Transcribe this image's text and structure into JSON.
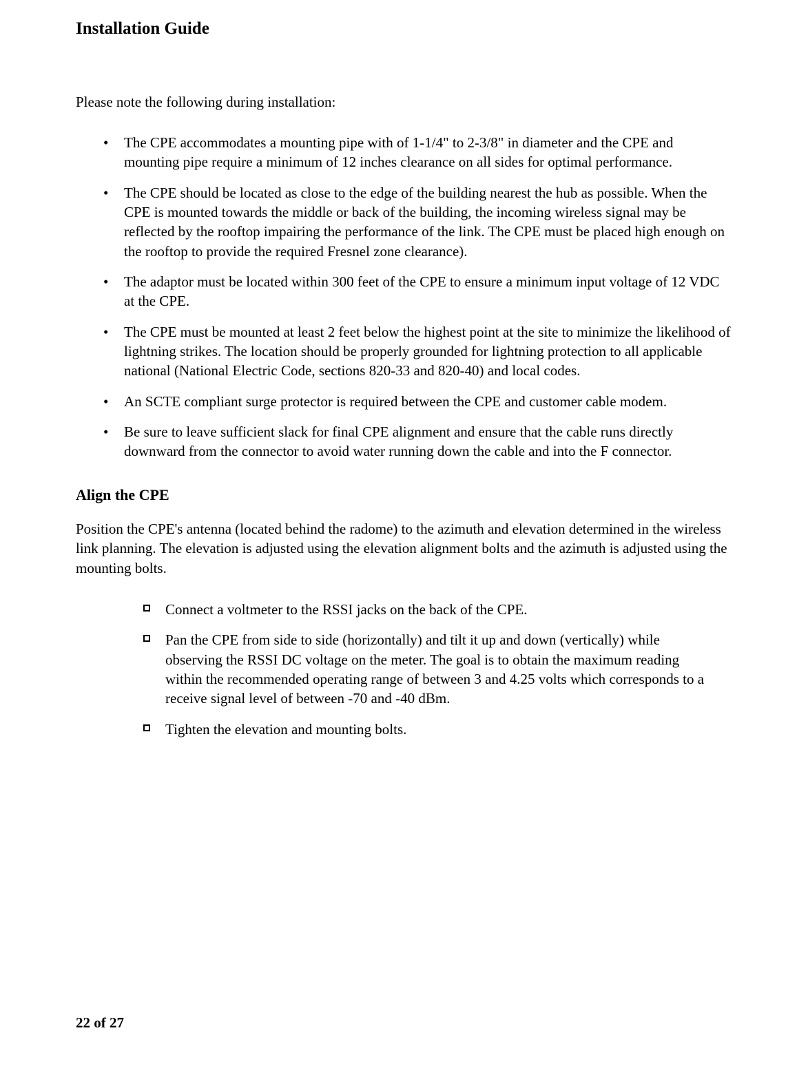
{
  "header": {
    "title": "Installation Guide"
  },
  "intro": "Please note the following during installation:",
  "notes": [
    "The CPE accommodates a mounting pipe with of 1-1/4\" to 2-3/8\" in diameter and the CPE and mounting pipe require a minimum of 12 inches clearance on all sides for optimal performance.",
    "The CPE should be located as close to the edge of the building nearest the hub as possible. When the CPE is mounted towards the middle or back of the building, the incoming wireless signal may be reflected by the rooftop impairing the performance of the link.  The CPE must be placed high enough on the rooftop to provide the required Fresnel zone clearance).",
    "The adaptor must be located within 300 feet of the CPE to ensure a minimum input voltage of 12 VDC at the CPE.",
    "The CPE must be mounted at least 2 feet below the highest point at the site to minimize the likelihood of lightning strikes. The location should be properly grounded for lightning protection to all applicable national (National Electric Code, sections 820-33 and 820-40) and local codes.",
    "An SCTE compliant surge protector is required between the CPE and customer cable modem.",
    "Be sure to leave sufficient slack for final CPE alignment and ensure that the cable runs directly downward from the connector to avoid water running down the cable and into the F connector."
  ],
  "align": {
    "heading": "Align the CPE",
    "para": "Position the CPE's antenna (located behind the radome) to the azimuth and elevation determined in the wireless link planning. The elevation is adjusted using the elevation alignment bolts and the azimuth is adjusted using the mounting bolts.",
    "steps": [
      "Connect a voltmeter to the RSSI jacks on the back of the CPE.",
      "Pan the CPE from side to side (horizontally) and tilt it up and down (vertically) while observing the RSSI DC voltage on the meter. The goal is to obtain the maximum reading within the recommended operating range of between 3 and 4.25 volts which corresponds to a receive signal level of between -70 and -40 dBm.",
      "Tighten the elevation and mounting bolts."
    ]
  },
  "footer": {
    "page": "22",
    "of_word": "of",
    "total": "27"
  }
}
